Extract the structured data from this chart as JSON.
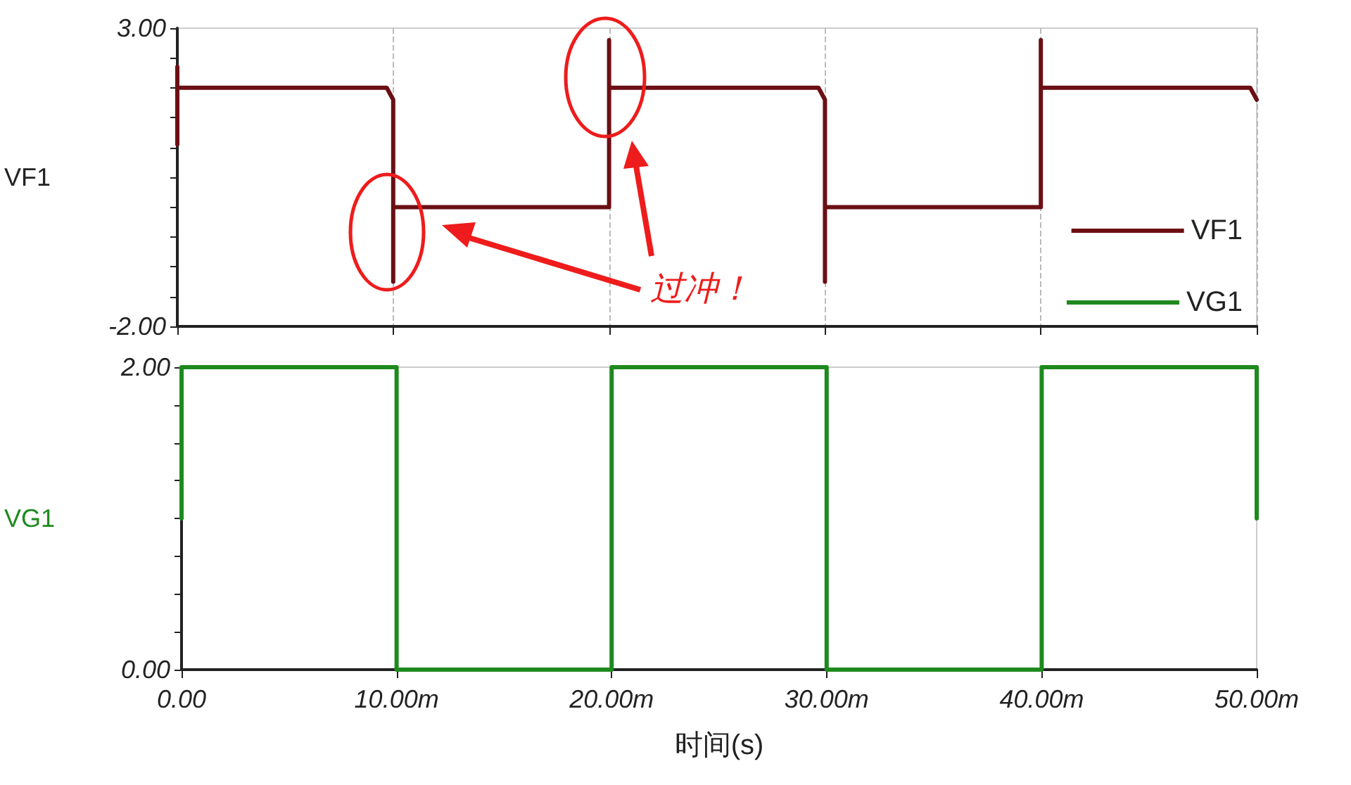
{
  "chart_data": [
    {
      "type": "line",
      "ylabel": "VF1",
      "annotations": [
        "过冲！"
      ],
      "x": [
        0,
        0,
        0,
        9.7,
        10,
        10,
        10,
        20,
        20,
        20,
        29.7,
        30,
        30,
        30,
        40,
        40,
        40,
        49.7,
        50
      ],
      "series": [
        {
          "name": "VF1",
          "color": "#6b0f14",
          "values": [
            1.05,
            2.35,
            2.0,
            2.0,
            1.8,
            -1.25,
            0,
            0,
            2.8,
            2.0,
            2.0,
            1.8,
            -1.25,
            0,
            0,
            2.8,
            2.0,
            2.0,
            1.8
          ]
        }
      ],
      "xlim": [
        0,
        50
      ],
      "xticks": [
        0,
        10,
        20,
        30,
        40,
        50
      ],
      "ylim": [
        -2,
        3
      ],
      "yticks": [
        {
          "value": -2,
          "label": "-2.00"
        },
        {
          "value": -1.5,
          "label": null
        },
        {
          "value": -1,
          "label": null
        },
        {
          "value": -0.5,
          "label": null
        },
        {
          "value": 0,
          "label": null
        },
        {
          "value": 0.5,
          "label": null
        },
        {
          "value": 1,
          "label": null
        },
        {
          "value": 1.5,
          "label": null
        },
        {
          "value": 2,
          "label": null
        },
        {
          "value": 2.5,
          "label": null
        },
        {
          "value": 3,
          "label": "3.00"
        }
      ],
      "tick_labels": "y",
      "grid": "x",
      "legend": "bottom right",
      "marker": "none",
      "line_style": "solid"
    },
    {
      "type": "line",
      "ylabel": "VG1",
      "xlabel": "时间(s)",
      "x": [
        0,
        0,
        10,
        10,
        20,
        20,
        30,
        30,
        40,
        40,
        50,
        50
      ],
      "series": [
        {
          "name": "VG1",
          "color": "#1e8a1e",
          "values": [
            1,
            2,
            2,
            0,
            0,
            2,
            2,
            0,
            0,
            2,
            2,
            1
          ]
        }
      ],
      "xlim": [
        0,
        50
      ],
      "xticks": [
        {
          "value": 0,
          "label": "0.00"
        },
        {
          "value": 10,
          "label": "10.00m"
        },
        {
          "value": 20,
          "label": "20.00m"
        },
        {
          "value": 30,
          "label": "30.00m"
        },
        {
          "value": 40,
          "label": "40.00m"
        },
        {
          "value": 50,
          "label": "50.00m"
        }
      ],
      "ylim": [
        0,
        2
      ],
      "yticks": [
        {
          "value": 0,
          "label": "0.00"
        },
        {
          "value": 0.25,
          "label": null
        },
        {
          "value": 0.5,
          "label": null
        },
        {
          "value": 0.75,
          "label": null
        },
        {
          "value": 1,
          "label": null
        },
        {
          "value": 1.25,
          "label": null
        },
        {
          "value": 1.5,
          "label": null
        },
        {
          "value": 1.75,
          "label": null
        },
        {
          "value": 2,
          "label": "2.00"
        }
      ],
      "grid": false,
      "legend": "top right",
      "marker": "none",
      "line_style": "solid"
    }
  ]
}
